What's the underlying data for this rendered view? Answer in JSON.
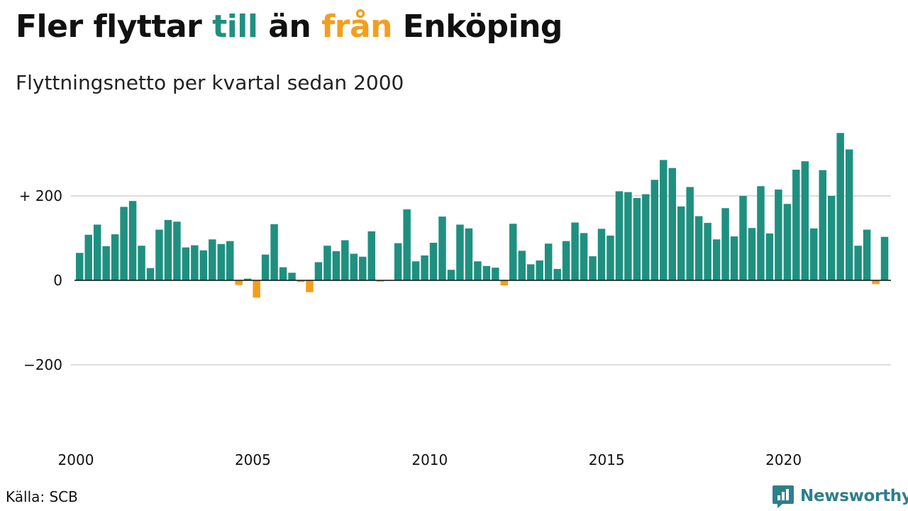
{
  "title": {
    "part1": "Fler flyttar ",
    "highlight_pos": "till",
    "part2": " än ",
    "highlight_neg": "från",
    "part3": " Enköping"
  },
  "subtitle": "Flyttningsnetto per kvartal sedan 2000",
  "source": "Källa: SCB",
  "brand": {
    "name": "Newsworthy",
    "icon": "bar-chart-logo-icon"
  },
  "colors": {
    "positive": "#1f9080",
    "negative": "#f29f1f",
    "grid": "#dddddd",
    "zero_line": "#111111",
    "brand": "#2d7f8c"
  },
  "chart_data": {
    "type": "bar",
    "x_start": "2000 Q1",
    "x_ticks": [
      "2000",
      "2005",
      "2010",
      "2015",
      "2020"
    ],
    "y_ticks": [
      {
        "value": 200,
        "label": "+ 200"
      },
      {
        "value": 0,
        "label": "0"
      },
      {
        "value": -200,
        "label": "−200"
      }
    ],
    "ylim": [
      -360,
      370
    ],
    "grid": true,
    "values": [
      65,
      108,
      132,
      81,
      109,
      174,
      188,
      82,
      29,
      120,
      143,
      139,
      78,
      83,
      71,
      97,
      86,
      93,
      -11,
      4,
      -41,
      61,
      133,
      31,
      18,
      -4,
      -28,
      43,
      82,
      69,
      95,
      63,
      56,
      116,
      -3,
      0,
      88,
      168,
      45,
      59,
      89,
      151,
      25,
      132,
      123,
      45,
      34,
      30,
      -12,
      134,
      70,
      38,
      47,
      87,
      27,
      93,
      137,
      112,
      57,
      122,
      106,
      211,
      209,
      195,
      204,
      238,
      285,
      266,
      175,
      221,
      152,
      136,
      97,
      171,
      104,
      200,
      124,
      223,
      111,
      215,
      181,
      262,
      282,
      123,
      261,
      200,
      349,
      310,
      82,
      120,
      -9,
      103
    ]
  }
}
